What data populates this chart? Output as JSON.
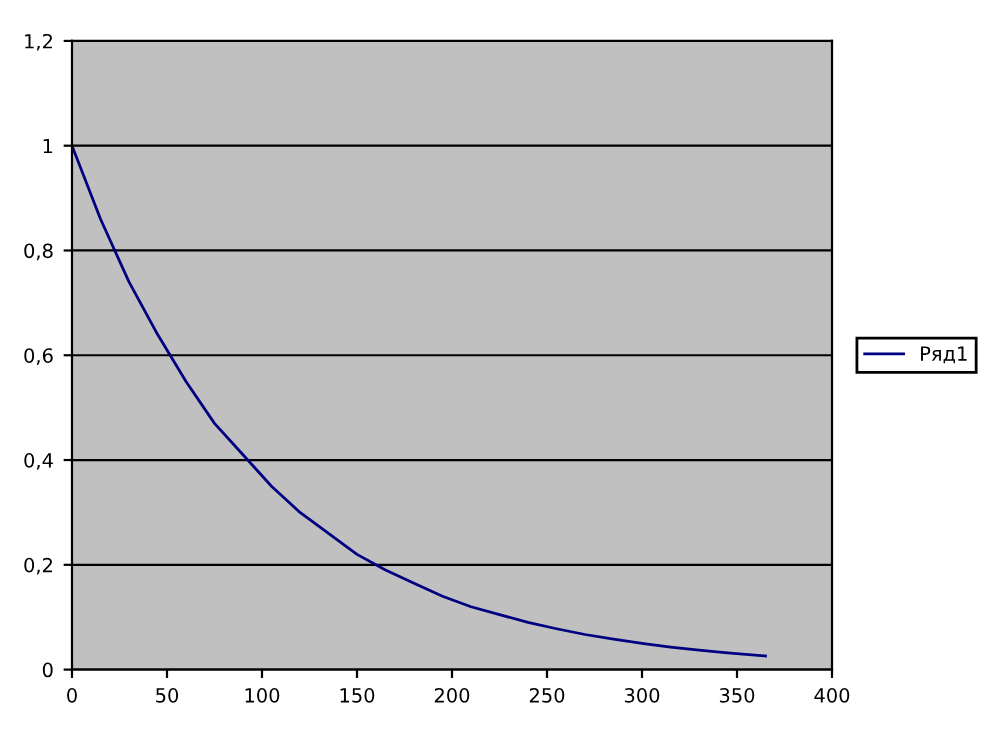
{
  "chart_data": {
    "type": "line",
    "x": [
      0,
      15,
      30,
      45,
      60,
      75,
      90,
      105,
      120,
      135,
      150,
      165,
      180,
      195,
      210,
      225,
      240,
      255,
      270,
      285,
      300,
      315,
      330,
      345,
      365
    ],
    "series": [
      {
        "name": "Ряд1",
        "color": "#000080",
        "values": [
          1,
          0.86,
          0.74,
          0.64,
          0.55,
          0.47,
          0.41,
          0.35,
          0.3,
          0.26,
          0.22,
          0.19,
          0.165,
          0.14,
          0.12,
          0.105,
          0.09,
          0.078,
          0.067,
          0.058,
          0.05,
          0.043,
          0.037,
          0.032,
          0.026
        ]
      }
    ],
    "xlim": [
      0,
      400
    ],
    "xticks": [
      0,
      50,
      100,
      150,
      200,
      250,
      300,
      350,
      400
    ],
    "ylim": [
      0,
      1.2
    ],
    "yticks": [
      0,
      {
        "value": 0.2,
        "label": "0,2"
      },
      {
        "value": 0.4,
        "label": "0,4"
      },
      {
        "value": 0.6,
        "label": "0,6"
      },
      {
        "value": 0.8,
        "label": "0,8"
      },
      1,
      {
        "value": 1.2,
        "label": "1,2"
      }
    ],
    "grid": "y",
    "legend": "right",
    "marker": "none",
    "line_style": "solid"
  }
}
